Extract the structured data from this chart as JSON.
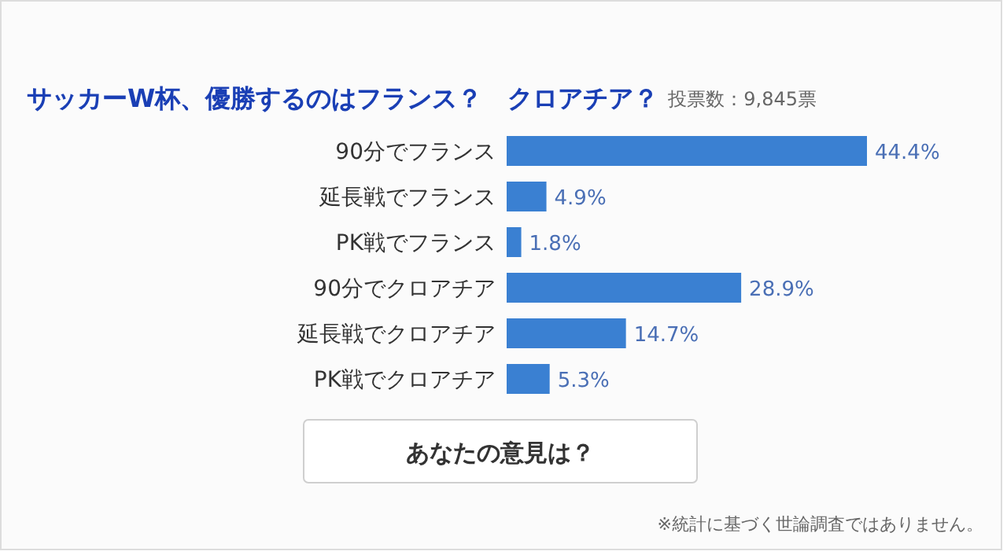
{
  "chart_data": {
    "type": "bar",
    "orientation": "horizontal",
    "title": "サッカーW杯、優勝するのはフランス？　クロアチア？",
    "subtitle": "投票数：9,845票",
    "categories": [
      "90分でフランス",
      "延長戦でフランス",
      "PK戦でフランス",
      "90分でクロアチア",
      "延長戦でクロアチア",
      "PK戦でクロアチア"
    ],
    "values": [
      44.4,
      4.9,
      1.8,
      28.9,
      14.7,
      5.3
    ],
    "value_labels": [
      "44.4%",
      "4.9%",
      "1.8%",
      "28.9%",
      "14.7%",
      "5.3%"
    ],
    "color": "#3a80d2",
    "annotations": [
      "あなたの意見は？",
      "※統計に基づく世論調査ではありません。"
    ]
  }
}
